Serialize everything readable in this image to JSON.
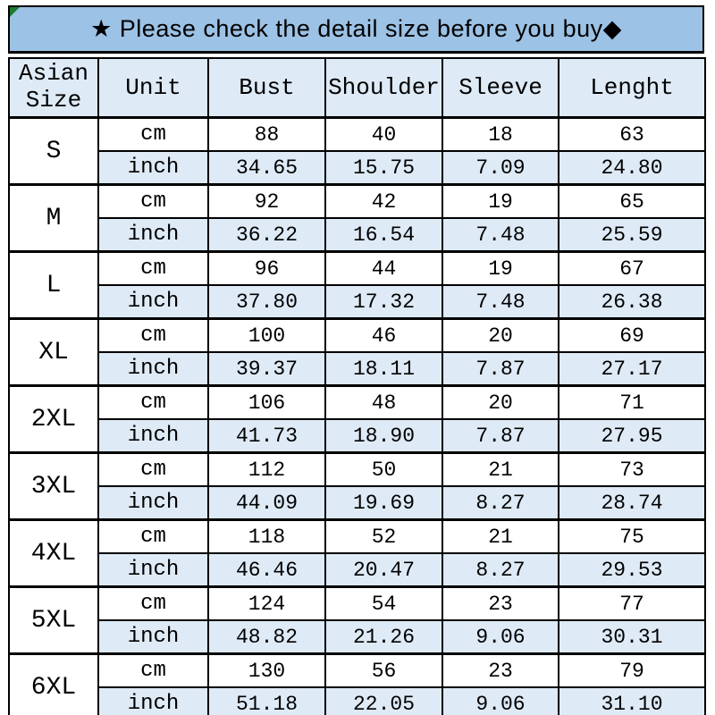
{
  "banner": {
    "text": "★ Please check the detail size before you buy◆",
    "background_color": "#9CC2E5",
    "corner_marker_color": "#1e7a33"
  },
  "table": {
    "headers": [
      "Asian\nSize",
      "Unit",
      "Bust",
      "Shoulder",
      "Sleeve",
      "Lenght"
    ],
    "unit_labels": [
      "cm",
      "inch"
    ],
    "alt_row_color": "#DEEAF6",
    "border_color": "#000000",
    "sizes": [
      {
        "label": "S",
        "cm": [
          "88",
          "40",
          "18",
          "63"
        ],
        "inch": [
          "34.65",
          "15.75",
          "7.09",
          "24.80"
        ]
      },
      {
        "label": "M",
        "cm": [
          "92",
          "42",
          "19",
          "65"
        ],
        "inch": [
          "36.22",
          "16.54",
          "7.48",
          "25.59"
        ]
      },
      {
        "label": "L",
        "cm": [
          "96",
          "44",
          "19",
          "67"
        ],
        "inch": [
          "37.80",
          "17.32",
          "7.48",
          "26.38"
        ]
      },
      {
        "label": "XL",
        "cm": [
          "100",
          "46",
          "20",
          "69"
        ],
        "inch": [
          "39.37",
          "18.11",
          "7.87",
          "27.17"
        ]
      },
      {
        "label": "2XL",
        "cm": [
          "106",
          "48",
          "20",
          "71"
        ],
        "inch": [
          "41.73",
          "18.90",
          "7.87",
          "27.95"
        ]
      },
      {
        "label": "3XL",
        "cm": [
          "112",
          "50",
          "21",
          "73"
        ],
        "inch": [
          "44.09",
          "19.69",
          "8.27",
          "28.74"
        ]
      },
      {
        "label": "4XL",
        "cm": [
          "118",
          "52",
          "21",
          "75"
        ],
        "inch": [
          "46.46",
          "20.47",
          "8.27",
          "29.53"
        ]
      },
      {
        "label": "5XL",
        "cm": [
          "124",
          "54",
          "23",
          "77"
        ],
        "inch": [
          "48.82",
          "21.26",
          "9.06",
          "30.31"
        ]
      },
      {
        "label": "6XL",
        "cm": [
          "130",
          "56",
          "23",
          "79"
        ],
        "inch": [
          "51.18",
          "22.05",
          "9.06",
          "31.10"
        ]
      }
    ]
  },
  "chart_data": {
    "type": "table",
    "title": "★ Please check the detail size before you buy◆",
    "columns": [
      "Asian Size",
      "Unit",
      "Bust",
      "Shoulder",
      "Sleeve",
      "Lenght"
    ],
    "rows": [
      [
        "S",
        "cm",
        88,
        40,
        18,
        63
      ],
      [
        "S",
        "inch",
        34.65,
        15.75,
        7.09,
        24.8
      ],
      [
        "M",
        "cm",
        92,
        42,
        19,
        65
      ],
      [
        "M",
        "inch",
        36.22,
        16.54,
        7.48,
        25.59
      ],
      [
        "L",
        "cm",
        96,
        44,
        19,
        67
      ],
      [
        "L",
        "inch",
        37.8,
        17.32,
        7.48,
        26.38
      ],
      [
        "XL",
        "cm",
        100,
        46,
        20,
        69
      ],
      [
        "XL",
        "inch",
        39.37,
        18.11,
        7.87,
        27.17
      ],
      [
        "2XL",
        "cm",
        106,
        48,
        20,
        71
      ],
      [
        "2XL",
        "inch",
        41.73,
        18.9,
        7.87,
        27.95
      ],
      [
        "3XL",
        "cm",
        112,
        50,
        21,
        73
      ],
      [
        "3XL",
        "inch",
        44.09,
        19.69,
        8.27,
        28.74
      ],
      [
        "4XL",
        "cm",
        118,
        52,
        21,
        75
      ],
      [
        "4XL",
        "inch",
        46.46,
        20.47,
        8.27,
        29.53
      ],
      [
        "5XL",
        "cm",
        124,
        54,
        23,
        77
      ],
      [
        "5XL",
        "inch",
        48.82,
        21.26,
        9.06,
        30.31
      ],
      [
        "6XL",
        "cm",
        130,
        56,
        23,
        79
      ],
      [
        "6XL",
        "inch",
        51.18,
        22.05,
        9.06,
        31.1
      ]
    ]
  }
}
